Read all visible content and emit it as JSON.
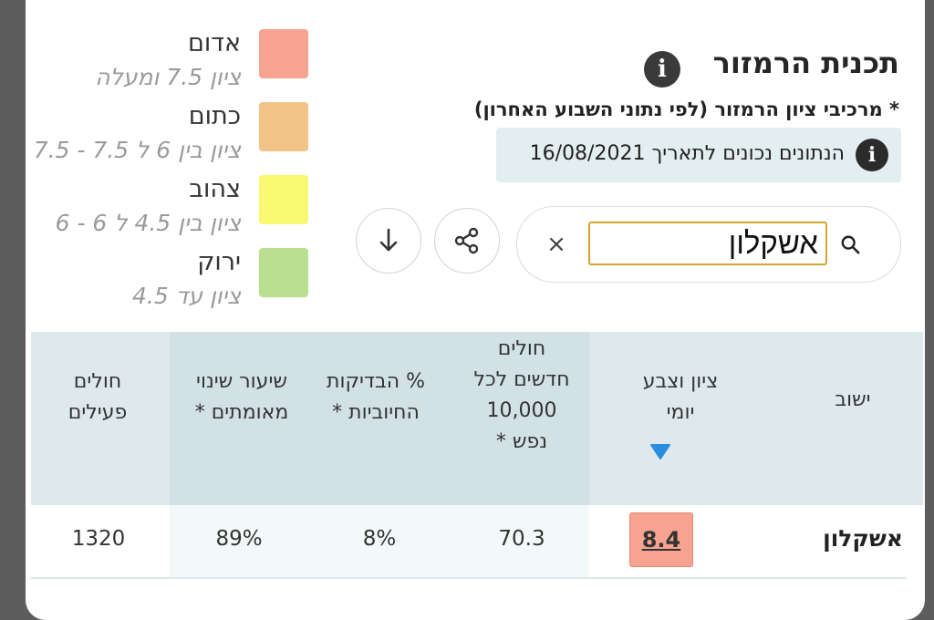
{
  "legend": [
    {
      "name": "אדום",
      "range": "ציון 7.5 ומעלה",
      "color": "#f7a392"
    },
    {
      "name": "כתום",
      "range": "ציון בין 6 ל 7.5 - 7.5",
      "color": "#f2c386"
    },
    {
      "name": "צהוב",
      "range": "ציון בין 4.5 ל 6 - 6",
      "color": "#f9f871"
    },
    {
      "name": "ירוק",
      "range": "ציון עד 4.5",
      "color": "#b8e08f"
    }
  ],
  "header": {
    "title": "תכנית הרמזור",
    "subtitle": "* מרכיבי ציון הרמזור (לפי נתוני השבוע האחרון)",
    "date_note": "הנתונים נכונים לתאריך 16/08/2021"
  },
  "search": {
    "value": "אשקלון",
    "clear_symbol": "×"
  },
  "icons": {
    "info": "info-icon",
    "search": "search-icon",
    "clear": "close-icon",
    "share": "share-icon",
    "download": "arrow-down-icon",
    "sort": "triangle-down-icon"
  },
  "table": {
    "headers": {
      "city": "ישוב",
      "score": "ציון וצבע\nיומי",
      "new_cases": "חולים\nחדשים לכל\n10,000\nנפש *",
      "positive": "% הבדיקות\nהחיוביות *",
      "change": "שיעור שינוי\nמאומתים *",
      "active": "חולים\nפעילים"
    },
    "rows": [
      {
        "city": "אשקלון",
        "score": "8.4",
        "new_cases": "70.3",
        "positive": "8%",
        "change": "89%",
        "active": "1320"
      }
    ]
  },
  "colors": {
    "accent_sort": "#2b8de0",
    "score_red": "#f7a392",
    "header_bg": "#dde9ec"
  }
}
